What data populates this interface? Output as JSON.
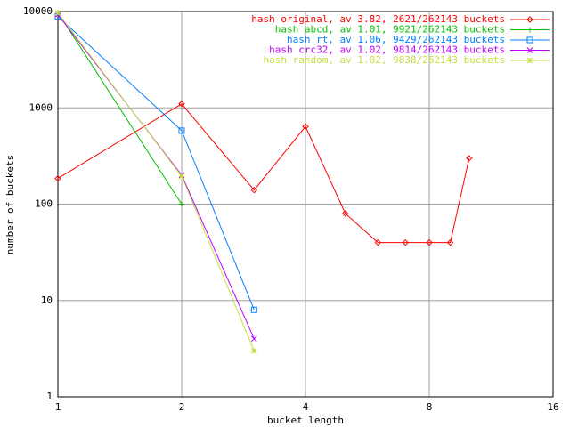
{
  "chart_data": {
    "type": "line",
    "x_label": "bucket length",
    "y_label": "number of buckets",
    "xlog": 2,
    "ylog": 10,
    "xlim": [
      1,
      16
    ],
    "ylim": [
      1,
      10000
    ],
    "xticks": [
      1,
      2,
      4,
      8,
      16
    ],
    "yticks": [
      1,
      10,
      100,
      1000,
      10000
    ],
    "grid": true,
    "legend": "top-right",
    "series": [
      {
        "name": "hash original, av 3.82, 2621/262143 buckets",
        "color": "#ff0000",
        "marker": "diamond",
        "x": [
          1,
          2,
          3,
          4,
          5,
          6,
          7,
          8,
          9,
          10
        ],
        "values": [
          185,
          1100,
          140,
          640,
          80,
          40,
          40,
          40,
          40,
          300
        ]
      },
      {
        "name": "hash abcd, av 1.01, 9921/262143 buckets",
        "color": "#00c000",
        "marker": "plus",
        "x": [
          1,
          2
        ],
        "values": [
          9800,
          100
        ]
      },
      {
        "name": "hash rt, av 1.06, 9429/262143 buckets",
        "color": "#0080ff",
        "marker": "square",
        "x": [
          1,
          2,
          3
        ],
        "values": [
          8900,
          580,
          8
        ]
      },
      {
        "name": "hash crc32, av 1.02, 9814/262143 buckets",
        "color": "#c000ff",
        "marker": "cross",
        "x": [
          1,
          2,
          3
        ],
        "values": [
          9300,
          200,
          4
        ]
      },
      {
        "name": "hash random, av 1.02, 9838/262143 buckets",
        "color": "#c0e040",
        "marker": "star",
        "x": [
          1,
          2,
          3
        ],
        "values": [
          9700,
          195,
          3
        ]
      }
    ]
  }
}
